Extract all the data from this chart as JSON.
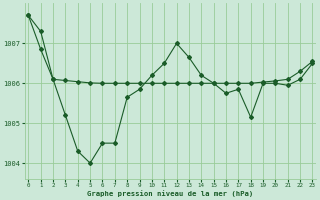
{
  "line1_x": [
    0,
    1,
    2,
    3,
    4,
    5,
    6,
    7,
    8,
    9,
    10,
    11,
    12,
    13,
    14,
    15,
    16,
    17,
    18,
    19,
    20,
    21,
    22,
    23
  ],
  "line1_y": [
    1007.7,
    1006.85,
    1006.1,
    1005.2,
    1004.3,
    1004.0,
    1004.5,
    1004.5,
    1005.65,
    1005.85,
    1006.2,
    1006.5,
    1007.0,
    1006.65,
    1006.2,
    1006.0,
    1005.75,
    1005.85,
    1005.15,
    1006.0,
    1006.0,
    1005.95,
    1006.1,
    1006.5
  ],
  "line2_x": [
    0,
    1,
    2,
    3,
    4,
    5,
    6,
    7,
    8,
    9,
    10,
    11,
    12,
    13,
    14,
    15,
    16,
    17,
    18,
    19,
    20,
    21,
    22,
    23
  ],
  "line2_y": [
    1007.7,
    1007.3,
    1006.1,
    1006.07,
    1006.04,
    1006.01,
    1006.0,
    1006.0,
    1006.0,
    1006.0,
    1006.0,
    1006.0,
    1006.0,
    1006.0,
    1006.0,
    1006.0,
    1006.0,
    1006.0,
    1006.0,
    1006.03,
    1006.06,
    1006.1,
    1006.3,
    1006.55
  ],
  "bg_color": "#cce8d8",
  "line_color": "#1a5c28",
  "grid_color": "#99cc99",
  "text_color": "#1a5c28",
  "xlabel": "Graphe pression niveau de la mer (hPa)",
  "yticks": [
    1004,
    1005,
    1006,
    1007
  ],
  "xtick_labels": [
    "0",
    "1",
    "2",
    "3",
    "4",
    "5",
    "6",
    "7",
    "8",
    "9",
    "10",
    "11",
    "12",
    "13",
    "14",
    "15",
    "16",
    "17",
    "18",
    "19",
    "20",
    "21",
    "22",
    "23"
  ],
  "xticks": [
    0,
    1,
    2,
    3,
    4,
    5,
    6,
    7,
    8,
    9,
    10,
    11,
    12,
    13,
    14,
    15,
    16,
    17,
    18,
    19,
    20,
    21,
    22,
    23
  ],
  "ylim": [
    1003.6,
    1008.0
  ],
  "xlim": [
    -0.3,
    23.3
  ]
}
